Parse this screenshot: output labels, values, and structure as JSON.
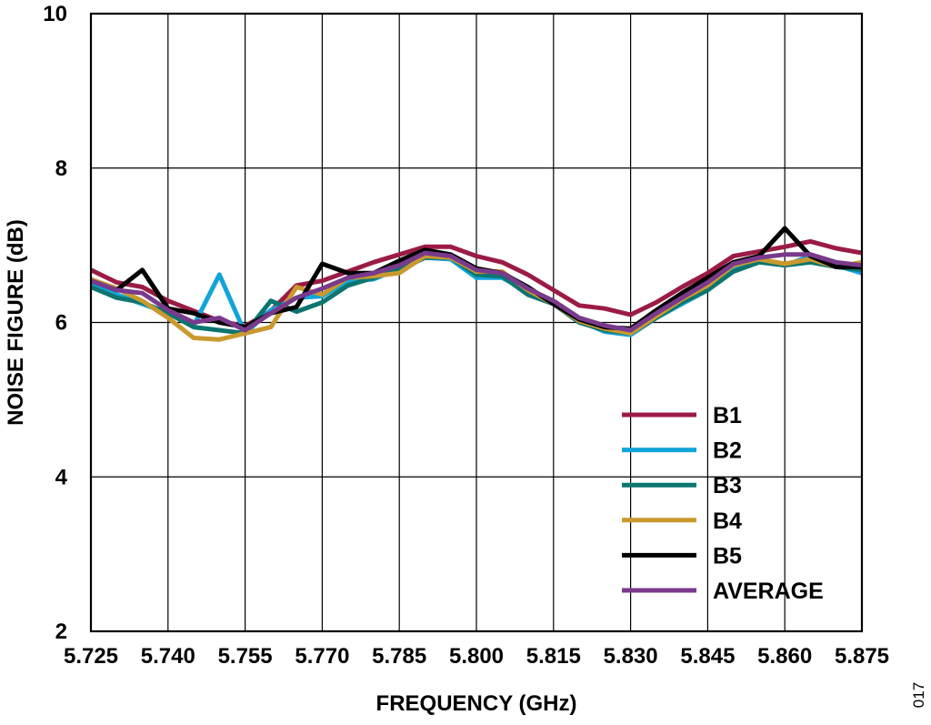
{
  "chart_data": {
    "type": "line",
    "xlabel": "FREQUENCY (GHz)",
    "ylabel": "NOISE FIGURE (dB)",
    "xlim": [
      5.725,
      5.875
    ],
    "ylim": [
      2,
      10
    ],
    "xticks": [
      "5.725",
      "5.740",
      "5.755",
      "5.770",
      "5.785",
      "5.800",
      "5.815",
      "5.830",
      "5.845",
      "5.860",
      "5.875"
    ],
    "yticks": [
      "2",
      "4",
      "6",
      "8",
      "10"
    ],
    "grid": true,
    "legend_position": "bottom-right",
    "figure_id": "017",
    "x": [
      5.725,
      5.73,
      5.735,
      5.74,
      5.745,
      5.75,
      5.755,
      5.76,
      5.765,
      5.77,
      5.775,
      5.78,
      5.785,
      5.79,
      5.795,
      5.8,
      5.805,
      5.81,
      5.815,
      5.82,
      5.825,
      5.83,
      5.835,
      5.84,
      5.845,
      5.85,
      5.855,
      5.86,
      5.865,
      5.87,
      5.875
    ],
    "series": [
      {
        "name": "B1",
        "color": "#9b1b45",
        "values": [
          6.68,
          6.52,
          6.46,
          6.28,
          6.15,
          6.02,
          5.95,
          6.15,
          6.48,
          6.54,
          6.66,
          6.78,
          6.88,
          6.98,
          6.98,
          6.86,
          6.78,
          6.62,
          6.42,
          6.22,
          6.18,
          6.1,
          6.26,
          6.46,
          6.64,
          6.86,
          6.92,
          6.98,
          7.05,
          6.96,
          6.9
        ]
      },
      {
        "name": "B2",
        "color": "#12a4d9",
        "values": [
          6.48,
          6.36,
          6.24,
          6.12,
          5.96,
          6.62,
          5.86,
          6.16,
          6.32,
          6.34,
          6.54,
          6.56,
          6.7,
          6.84,
          6.82,
          6.58,
          6.58,
          6.4,
          6.24,
          6.02,
          5.88,
          5.84,
          6.06,
          6.24,
          6.42,
          6.7,
          6.8,
          6.74,
          6.86,
          6.74,
          6.64
        ]
      },
      {
        "name": "B3",
        "color": "#0c7570",
        "values": [
          6.46,
          6.32,
          6.26,
          6.12,
          5.94,
          5.9,
          5.86,
          6.28,
          6.14,
          6.26,
          6.48,
          6.58,
          6.68,
          6.84,
          6.84,
          6.62,
          6.6,
          6.36,
          6.24,
          6.0,
          5.9,
          5.86,
          6.06,
          6.26,
          6.42,
          6.66,
          6.78,
          6.74,
          6.78,
          6.72,
          6.68
        ]
      },
      {
        "name": "B4",
        "color": "#c9992e",
        "values": [
          6.56,
          6.44,
          6.28,
          6.06,
          5.8,
          5.78,
          5.86,
          5.94,
          6.46,
          6.36,
          6.58,
          6.6,
          6.64,
          6.86,
          6.84,
          6.66,
          6.66,
          6.42,
          6.24,
          6.02,
          5.92,
          5.86,
          6.08,
          6.3,
          6.48,
          6.74,
          6.82,
          6.76,
          6.82,
          6.72,
          6.78
        ]
      },
      {
        "name": "B5",
        "color": "#000000",
        "values": [
          6.54,
          6.42,
          6.68,
          6.18,
          6.12,
          6.0,
          5.94,
          6.12,
          6.2,
          6.76,
          6.64,
          6.64,
          6.8,
          6.94,
          6.88,
          6.7,
          6.64,
          6.46,
          6.24,
          6.04,
          5.94,
          5.92,
          6.16,
          6.38,
          6.58,
          6.78,
          6.86,
          7.22,
          6.86,
          6.72,
          6.72
        ]
      },
      {
        "name": "AVERAGE",
        "color": "#7a3a8c",
        "values": [
          6.54,
          6.42,
          6.38,
          6.16,
          6.0,
          6.06,
          5.9,
          6.12,
          6.32,
          6.44,
          6.58,
          6.64,
          6.74,
          6.9,
          6.86,
          6.68,
          6.64,
          6.44,
          6.28,
          6.06,
          5.96,
          5.9,
          6.12,
          6.32,
          6.52,
          6.76,
          6.84,
          6.88,
          6.88,
          6.78,
          6.74
        ]
      }
    ]
  }
}
